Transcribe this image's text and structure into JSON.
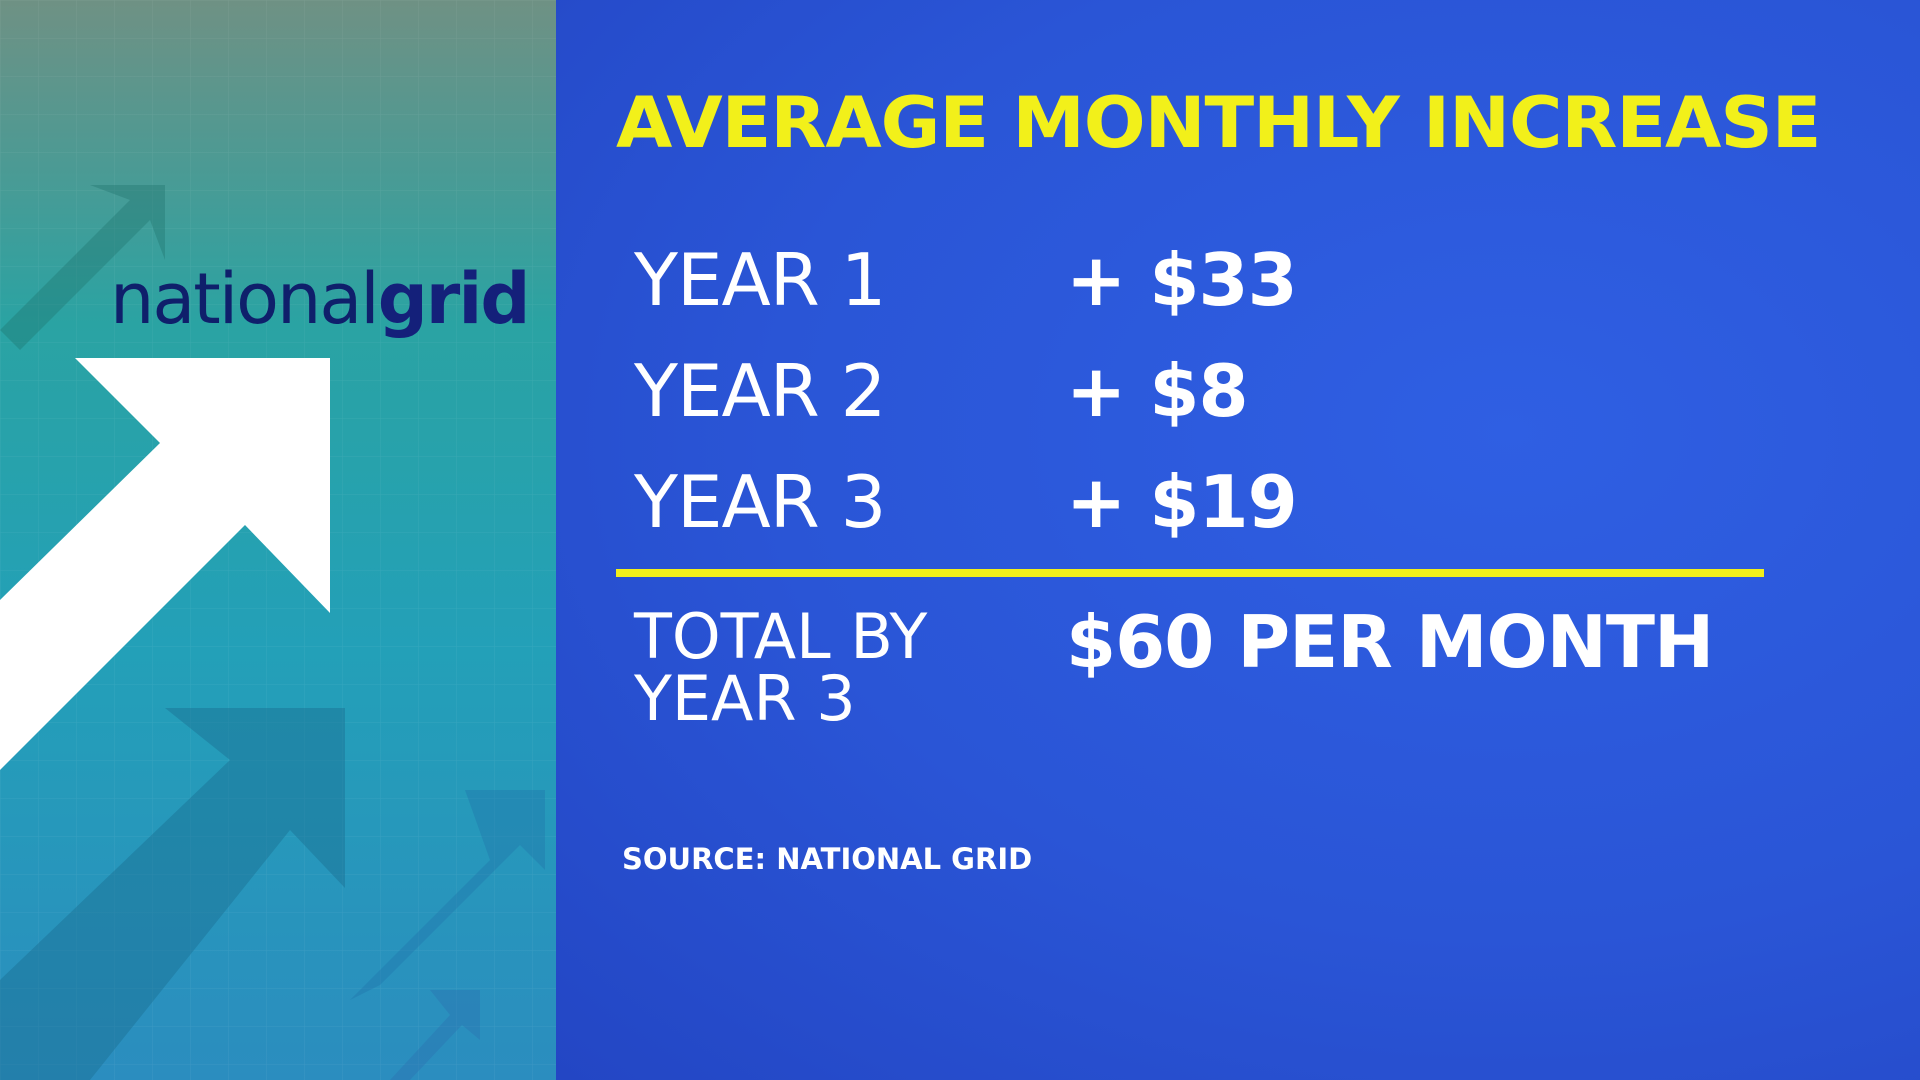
{
  "logo": {
    "part1": "national",
    "part2": "grid"
  },
  "title": "AVERAGE MONTHLY INCREASE",
  "rows": [
    {
      "label": "YEAR 1",
      "value": "+ $33"
    },
    {
      "label": "YEAR 2",
      "value": "+ $8"
    },
    {
      "label": "YEAR 3",
      "value": "+ $19"
    }
  ],
  "total": {
    "label": "TOTAL BY YEAR 3",
    "value": "$60 PER MONTH"
  },
  "source": "SOURCE: NATIONAL GRID",
  "colors": {
    "accent": "#f2f01a",
    "background": "#2a55d6",
    "text": "#ffffff",
    "logo": "#14207a"
  },
  "icons": [
    "arrow-up-right-icon"
  ]
}
